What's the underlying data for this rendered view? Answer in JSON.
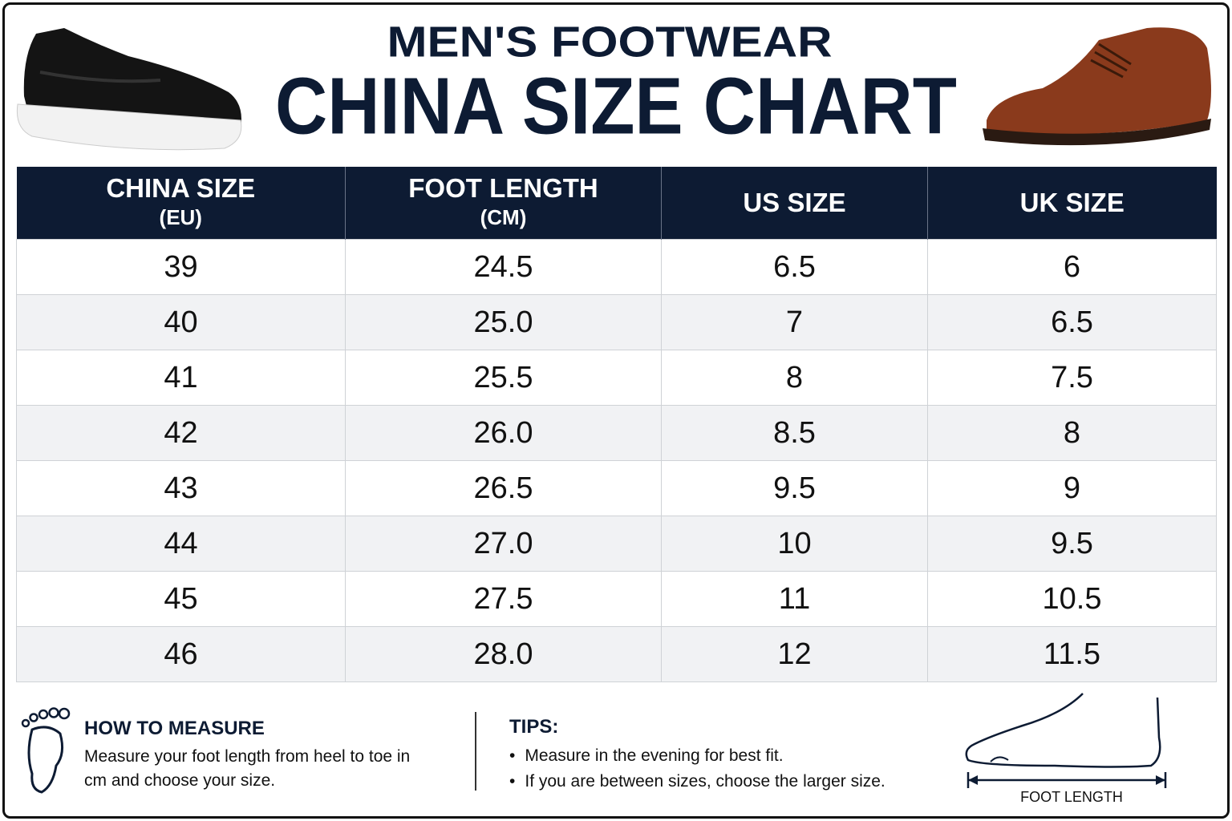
{
  "header": {
    "title": "MEN'S FOOTWEAR",
    "subtitle": "CHINA SIZE CHART"
  },
  "table": {
    "headers": [
      [
        "CHINA SIZE",
        "(EU)"
      ],
      [
        "FOOT LENGTH",
        "(CM)"
      ],
      [
        "US SIZE"
      ],
      [
        "UK SIZE"
      ]
    ],
    "rows": [
      [
        "39",
        "24.5",
        "6.5",
        "6"
      ],
      [
        "40",
        "25.0",
        "7",
        "6.5"
      ],
      [
        "41",
        "25.5",
        "8",
        "7.5"
      ],
      [
        "42",
        "26.0",
        "8.5",
        "8"
      ],
      [
        "43",
        "26.5",
        "9.5",
        "9"
      ],
      [
        "44",
        "27.0",
        "10",
        "9.5"
      ],
      [
        "45",
        "27.5",
        "11",
        "10.5"
      ],
      [
        "46",
        "28.0",
        "12",
        "11.5"
      ]
    ]
  },
  "measure": {
    "title": "HOW TO MEASURE",
    "text": "Measure your foot length from heel to toe in cm and choose your size."
  },
  "tips": {
    "title": "TIPS:",
    "items": [
      "Measure in the evening for best fit.",
      "If you are between sizes, choose the larger size."
    ]
  },
  "diagram": {
    "label": "FOOT LENGTH"
  }
}
